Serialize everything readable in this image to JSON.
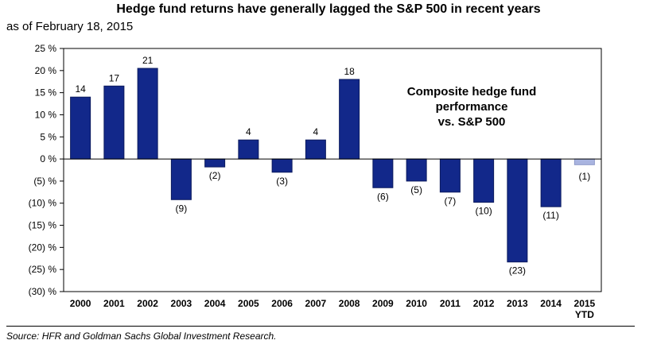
{
  "chart_data": {
    "type": "bar",
    "title": "Hedge fund returns have generally lagged the S&P 500 in recent years",
    "subtitle": "as of February 18, 2015",
    "annotation": [
      "Composite hedge fund",
      "performance",
      "vs. S&P 500"
    ],
    "source": "Source: HFR and Goldman Sachs Global Investment Research.",
    "categories": [
      "2000",
      "2001",
      "2002",
      "2003",
      "2004",
      "2005",
      "2006",
      "2007",
      "2008",
      "2009",
      "2010",
      "2011",
      "2012",
      "2013",
      "2014",
      "2015"
    ],
    "category_sublabels": [
      "",
      "",
      "",
      "",
      "",
      "",
      "",
      "",
      "",
      "",
      "",
      "",
      "",
      "",
      "",
      "YTD"
    ],
    "values": [
      14,
      16.5,
      20.5,
      -9.2,
      -1.8,
      4.3,
      -3,
      4.3,
      18,
      -6.5,
      -5,
      -7.5,
      -9.8,
      -23.3,
      -10.8,
      -1.3
    ],
    "data_labels": [
      "14",
      "17",
      "21",
      "(9)",
      "(2)",
      "4",
      "(3)",
      "4",
      "18",
      "(6)",
      "(5)",
      "(7)",
      "(10)",
      "(23)",
      "(11)",
      "(1)"
    ],
    "highlight_index": 15,
    "ylim": [
      -30,
      25
    ],
    "yticks": [
      25,
      20,
      15,
      10,
      5,
      0,
      -5,
      -10,
      -15,
      -20,
      -25,
      -30
    ],
    "ytick_labels": [
      "25 %",
      "20 %",
      "15 %",
      "10 %",
      "5 %",
      "0 %",
      "(5) %",
      "(10) %",
      "(15) %",
      "(20) %",
      "(25) %",
      "(30) %"
    ],
    "colors": {
      "bar": "#12288a",
      "highlight": "#a9b4e0",
      "bar_edge": "#0b1a5e",
      "axis": "#000000"
    }
  }
}
